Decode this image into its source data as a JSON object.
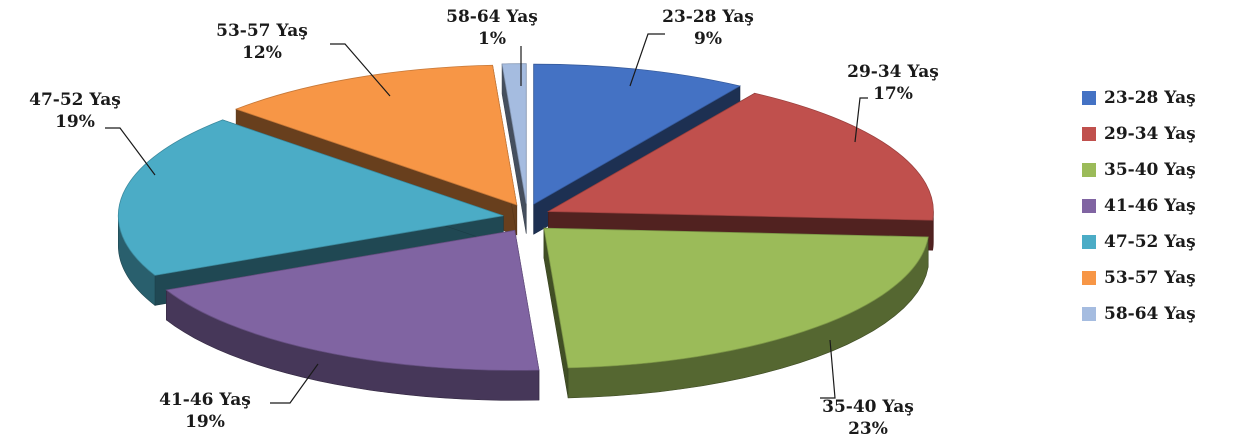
{
  "chart_data": {
    "type": "pie",
    "style": "3d-exploded",
    "title": "",
    "categories": [
      "23-28 Yaş",
      "29-34 Yaş",
      "35-40 Yaş",
      "41-46 Yaş",
      "47-52 Yaş",
      "53-57 Yaş",
      "58-64 Yaş"
    ],
    "values": [
      9,
      17,
      23,
      19,
      19,
      12,
      1
    ],
    "value_labels": [
      "9%",
      "17%",
      "23%",
      "19%",
      "19%",
      "12%",
      "1%"
    ],
    "colors": [
      "#4472C4",
      "#C0504D",
      "#9BBB59",
      "#8064A2",
      "#4BACC6",
      "#F79646",
      "#A5BCE0"
    ],
    "legend_position": "right",
    "legend": [
      "23-28 Yaş",
      "29-34 Yaş",
      "35-40 Yaş",
      "41-46 Yaş",
      "47-52 Yaş",
      "53-57 Yaş",
      "58-64 Yaş"
    ]
  }
}
